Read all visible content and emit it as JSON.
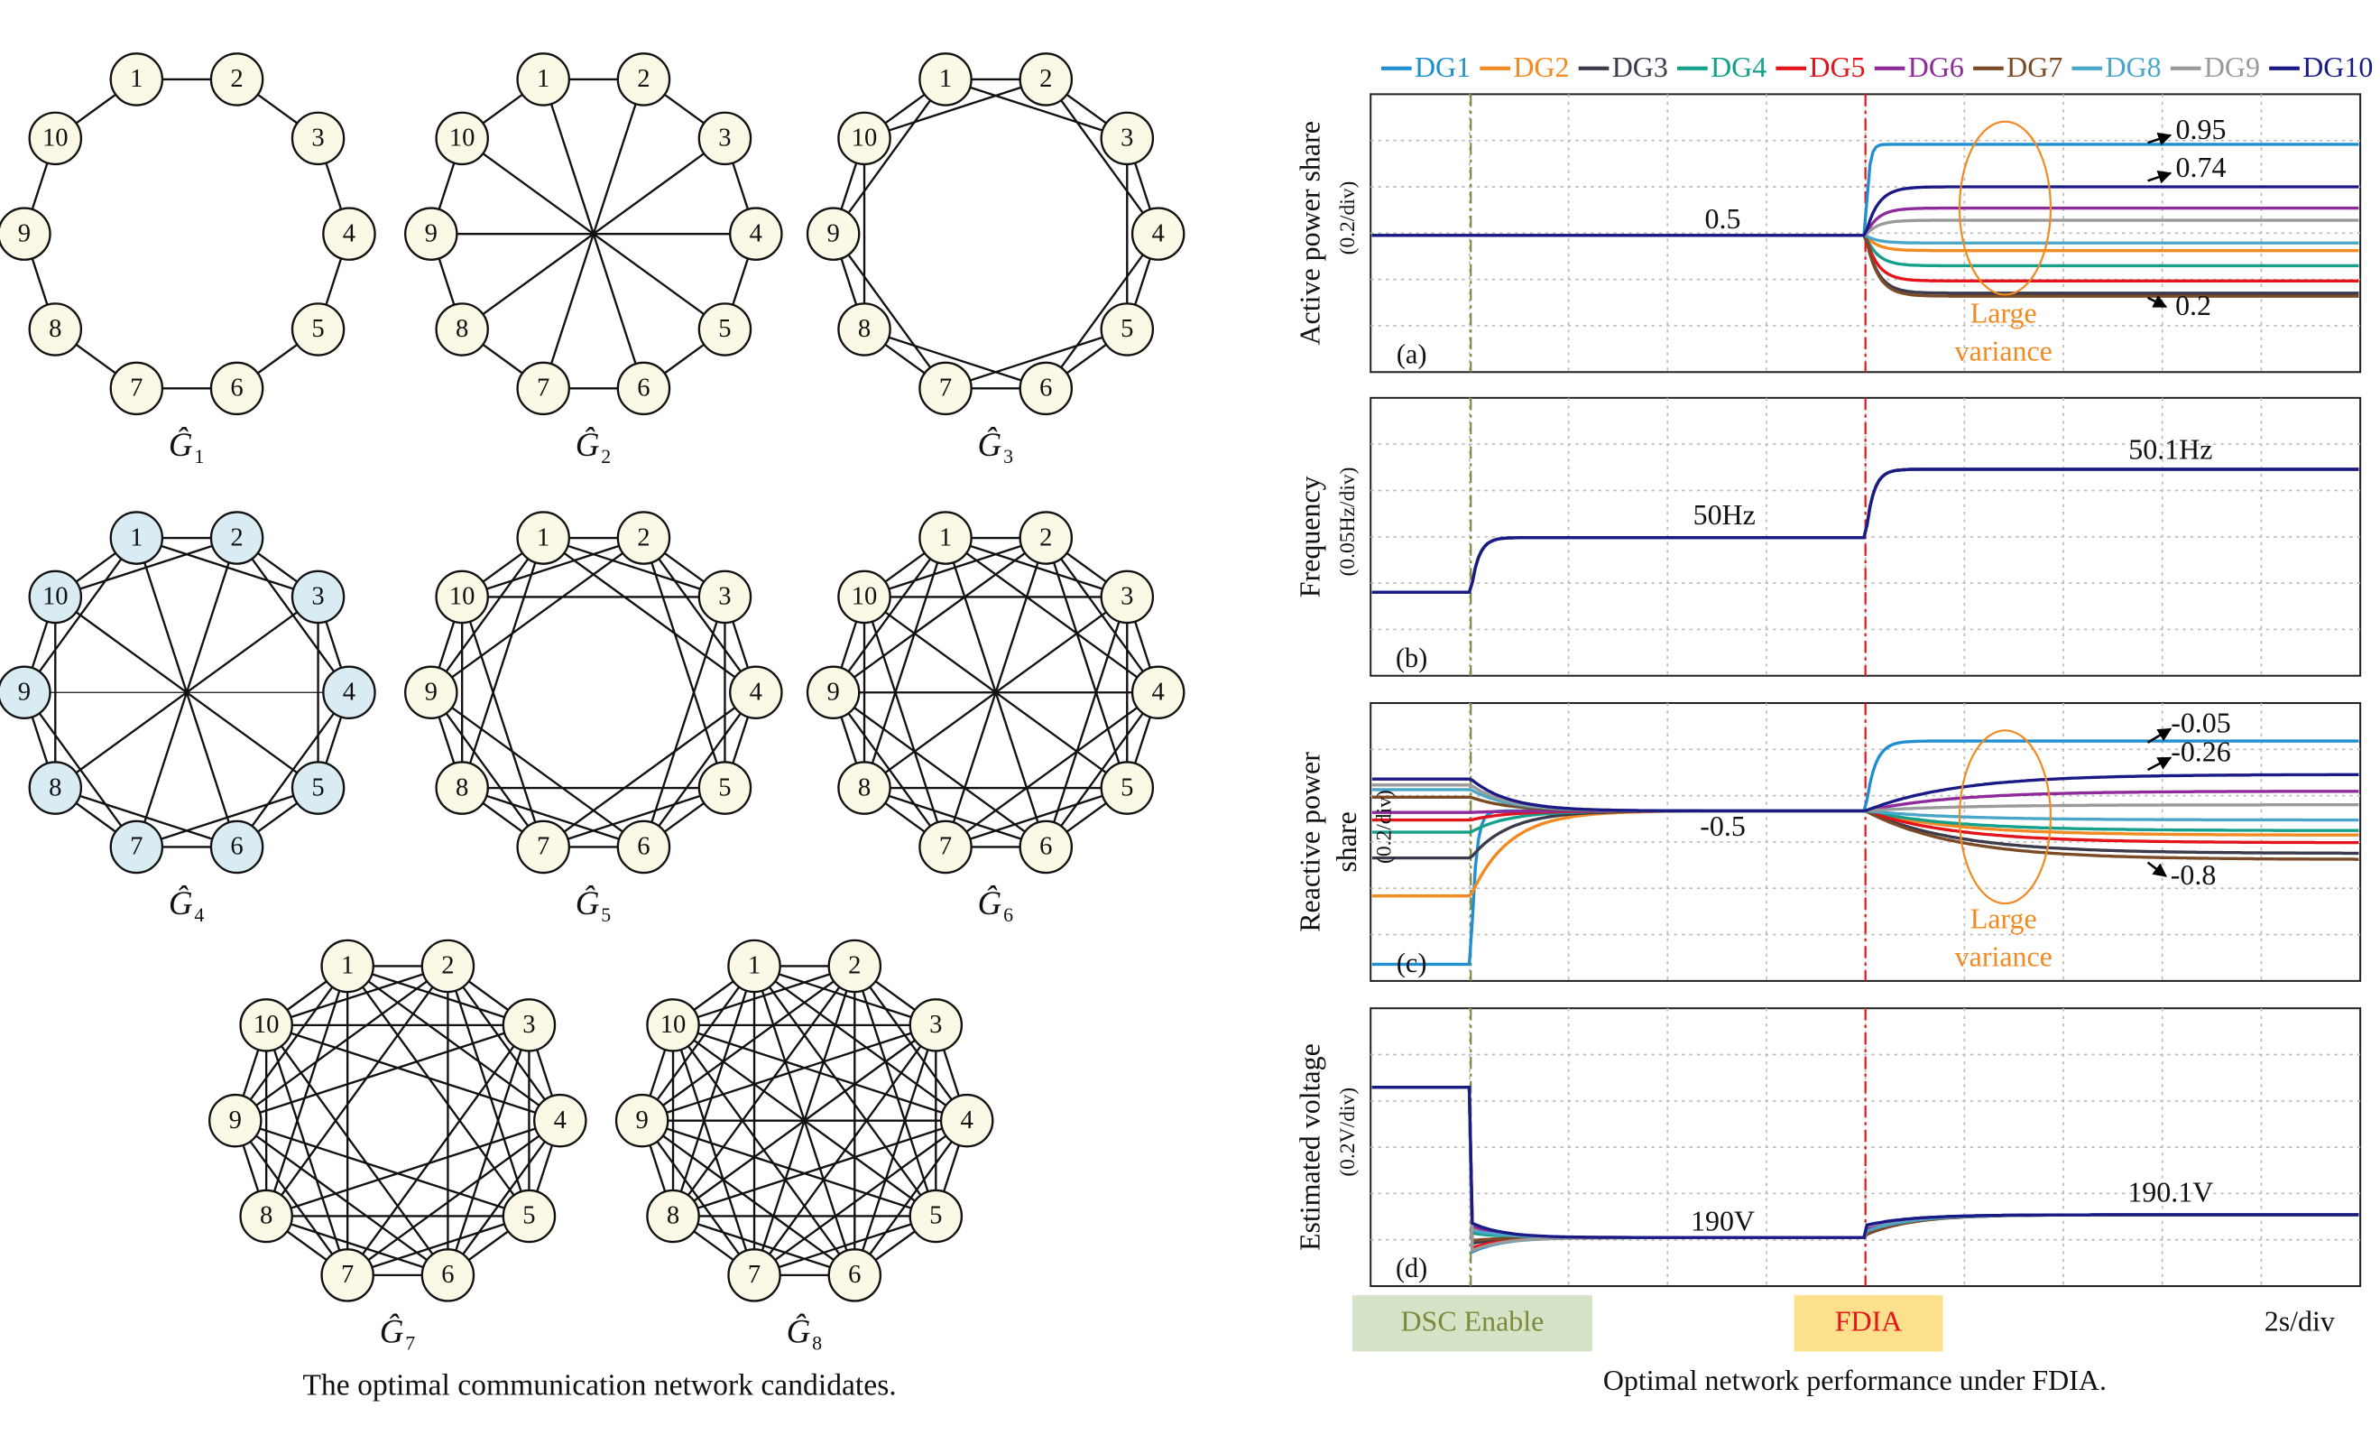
{
  "left": {
    "graphs": [
      {
        "label": "Ĝ",
        "subscript": "1",
        "nodes": [
          "1",
          "2",
          "3",
          "4",
          "5",
          "6",
          "7",
          "8",
          "9",
          "10"
        ]
      },
      {
        "label": "Ĝ",
        "subscript": "2",
        "nodes": [
          "1",
          "2",
          "3",
          "4",
          "5",
          "6",
          "7",
          "8",
          "9",
          "10"
        ]
      },
      {
        "label": "Ĝ",
        "subscript": "3",
        "nodes": [
          "1",
          "2",
          "3",
          "4",
          "5",
          "6",
          "7",
          "8",
          "9",
          "10"
        ]
      },
      {
        "label": "Ĝ",
        "subscript": "4",
        "nodes": [
          "1",
          "2",
          "3",
          "4",
          "5",
          "6",
          "7",
          "8",
          "9",
          "10"
        ]
      },
      {
        "label": "Ĝ",
        "subscript": "5",
        "nodes": [
          "1",
          "2",
          "3",
          "4",
          "5",
          "6",
          "7",
          "8",
          "9",
          "10"
        ]
      },
      {
        "label": "Ĝ",
        "subscript": "6",
        "nodes": [
          "1",
          "2",
          "3",
          "4",
          "5",
          "6",
          "7",
          "8",
          "9",
          "10"
        ]
      },
      {
        "label": "Ĝ",
        "subscript": "7",
        "nodes": [
          "1",
          "2",
          "3",
          "4",
          "5",
          "6",
          "7",
          "8",
          "9",
          "10"
        ]
      },
      {
        "label": "Ĝ",
        "subscript": "8",
        "nodes": [
          "1",
          "2",
          "3",
          "4",
          "5",
          "6",
          "7",
          "8",
          "9",
          "10"
        ]
      }
    ],
    "caption": "The optimal communication network candidates."
  },
  "right": {
    "legend": [
      {
        "name": "DG1",
        "color": "#1f8fd0"
      },
      {
        "name": "DG2",
        "color": "#f28a22"
      },
      {
        "name": "DG3",
        "color": "#3b3b4d"
      },
      {
        "name": "DG4",
        "color": "#14a08a"
      },
      {
        "name": "DG5",
        "color": "#e3141c"
      },
      {
        "name": "DG6",
        "color": "#8e2a9c"
      },
      {
        "name": "DG7",
        "color": "#7b4a26"
      },
      {
        "name": "DG8",
        "color": "#4aa6c8"
      },
      {
        "name": "DG9",
        "color": "#9a9a9a"
      },
      {
        "name": "DG10",
        "color": "#1a1a86"
      }
    ],
    "panels": [
      {
        "ylabel": [
          "Active power share"
        ],
        "scale": "(0.2/div)",
        "tag": "(a)",
        "annotations": [
          "0.5",
          "0.95",
          "0.74",
          "0.2",
          "Large",
          "variance"
        ]
      },
      {
        "ylabel": [
          "Frequency"
        ],
        "scale": "(0.05Hz/div)",
        "tag": "(b)",
        "annotations": [
          "50Hz",
          "50.1Hz"
        ]
      },
      {
        "ylabel": [
          "Reactive power",
          "share"
        ],
        "scale": "(0.2/div)",
        "tag": "(c)",
        "annotations": [
          "-0.05",
          "-0.26",
          "-0.5",
          "-0.8",
          "Large",
          "variance"
        ]
      },
      {
        "ylabel": [
          "Estimated voltage"
        ],
        "scale": "(0.2V/div)",
        "tag": "(d)",
        "annotations": [
          "190V",
          "190.1V"
        ]
      }
    ],
    "markers": [
      "DSC Enable",
      "FDIA"
    ],
    "timescale": "2s/div",
    "caption": "Optimal network performance under FDIA."
  }
}
